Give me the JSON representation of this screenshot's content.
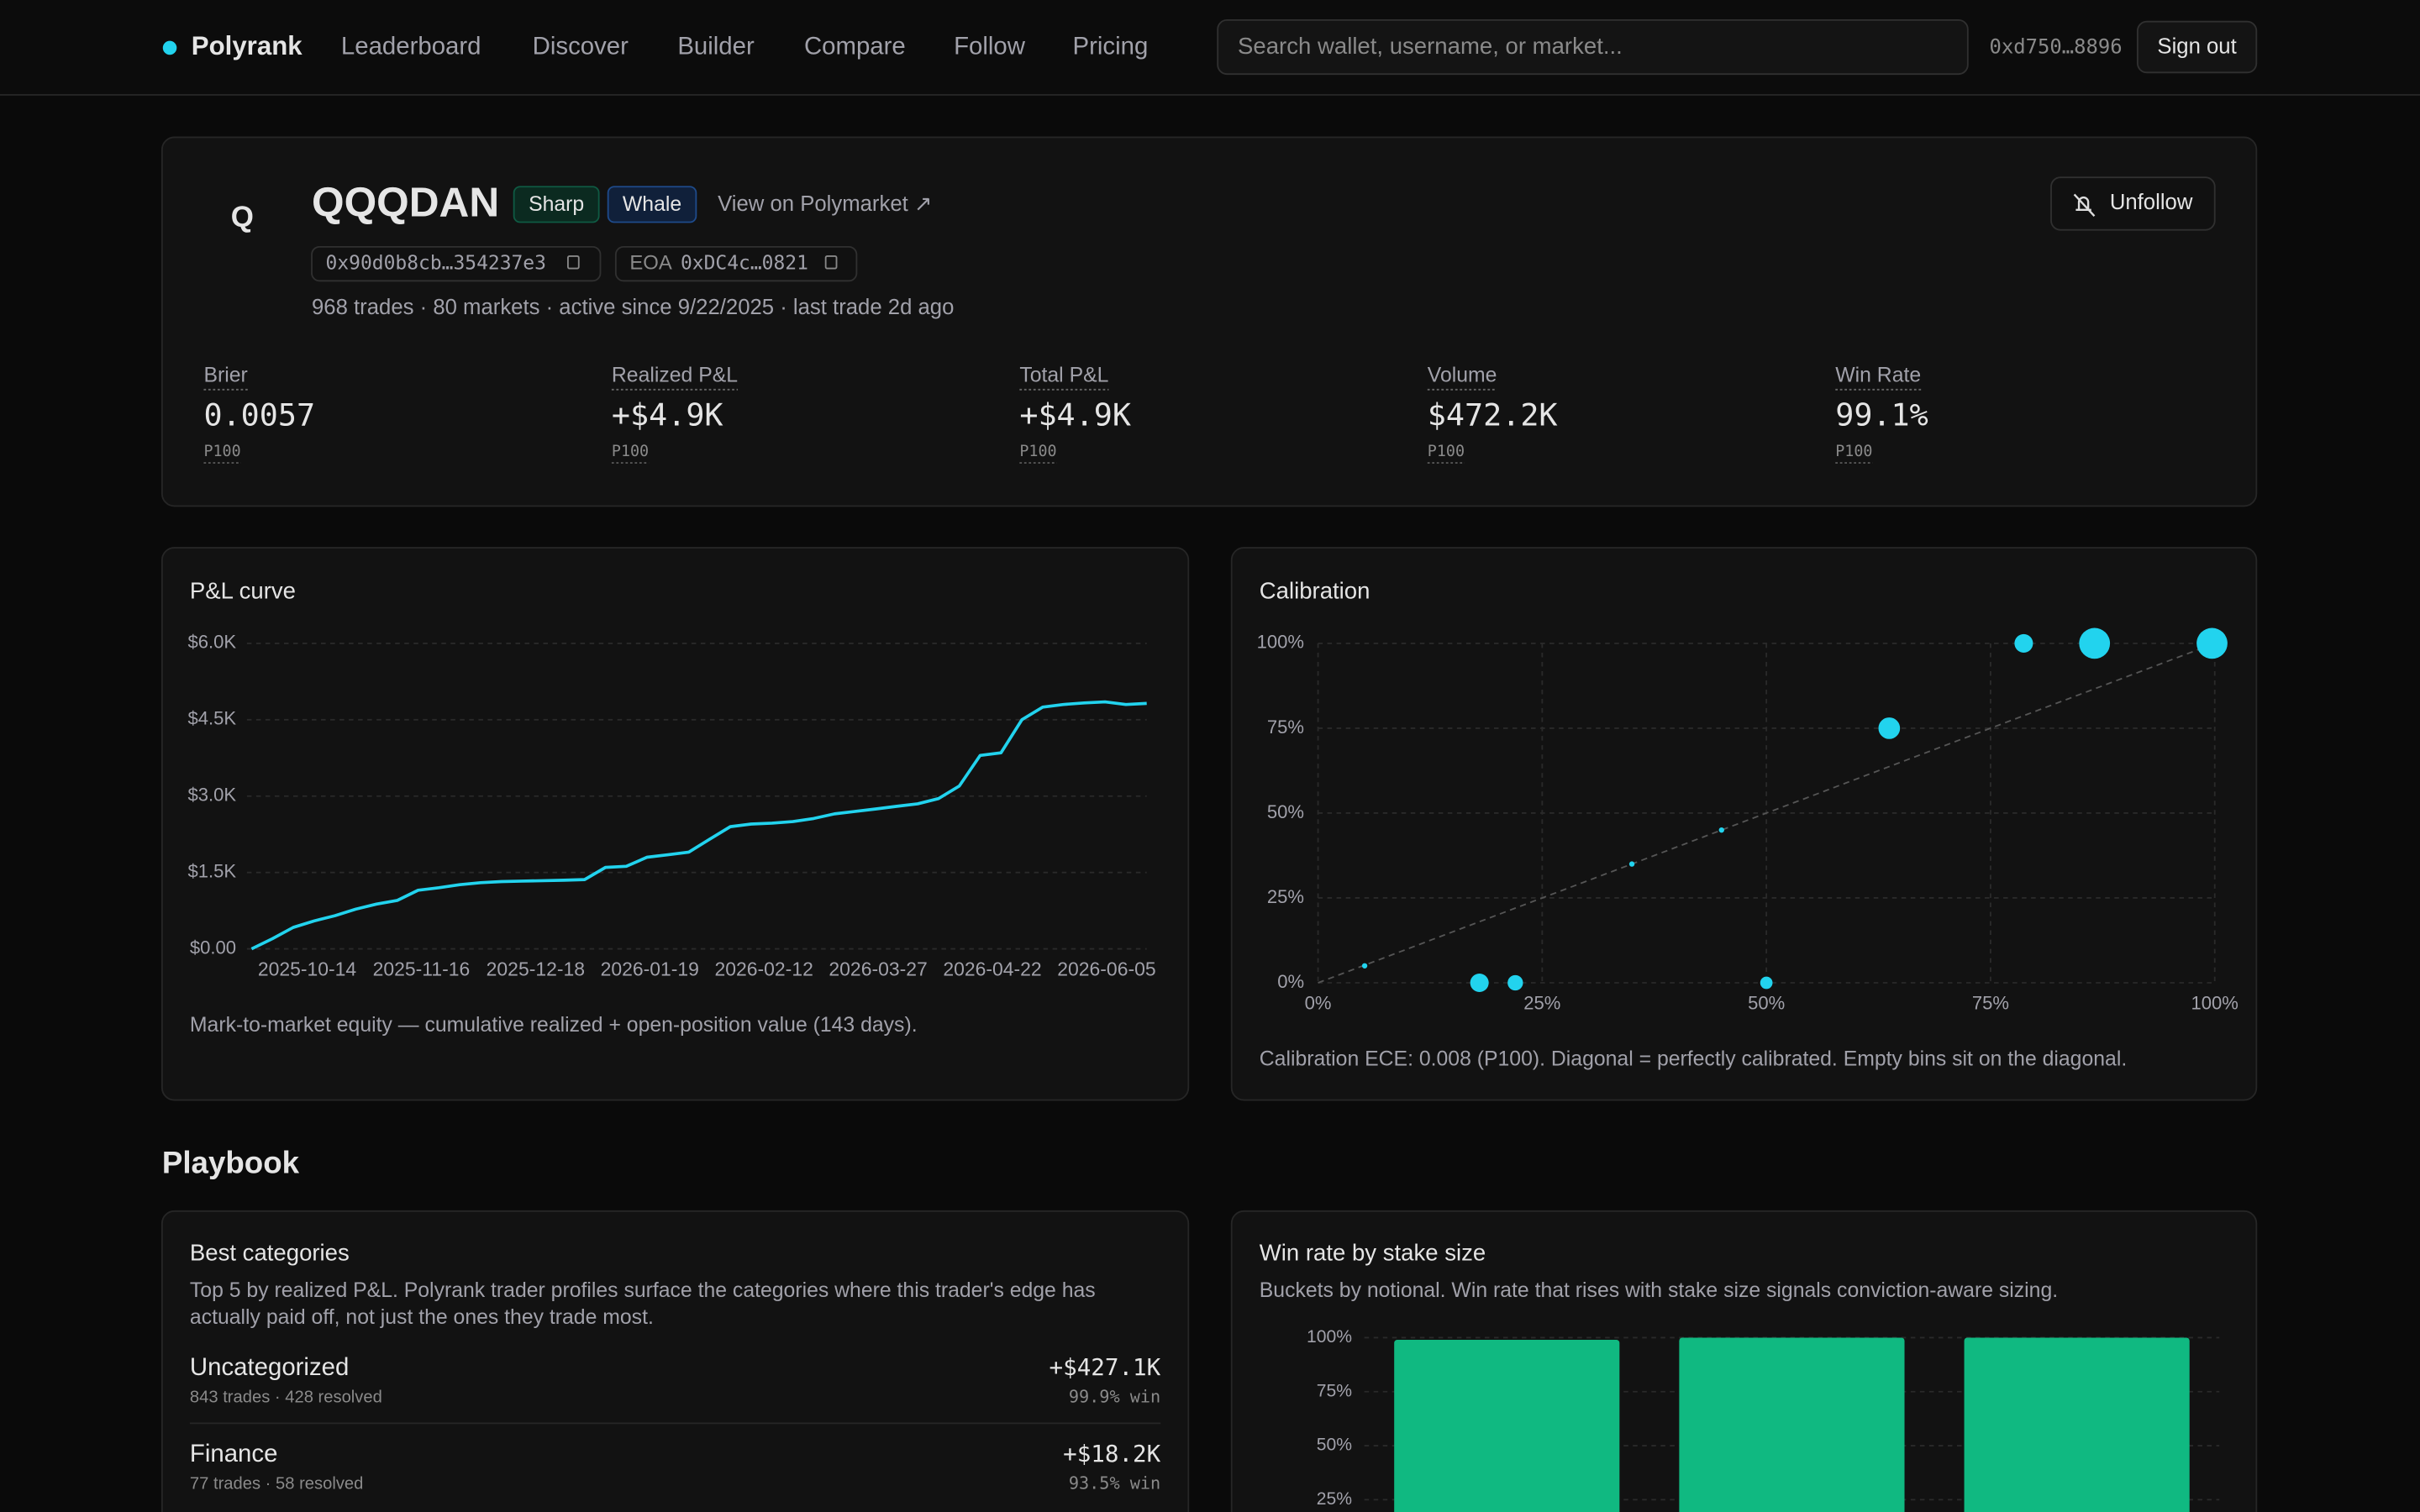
{
  "nav": {
    "brand": "Polyrank",
    "links": [
      "Leaderboard",
      "Discover",
      "Builder",
      "Compare",
      "Follow",
      "Pricing"
    ],
    "search_placeholder": "Search wallet, username, or market...",
    "wallet": "0xd750…8896",
    "sign_out": "Sign out"
  },
  "profile": {
    "avatar": "Q",
    "name": "QQQDAN",
    "badges": [
      "Sharp",
      "Whale"
    ],
    "polymarket_link": "View on Polymarket ↗",
    "address": "0x90d0b8cb…354237e3",
    "eoa_label": "EOA",
    "eoa": "0xDC4c…0821",
    "summary": "968 trades · 80 markets · active since 9/22/2025 · last trade 2d ago",
    "unfollow": "Unfollow",
    "stats": [
      {
        "label": "Brier",
        "value": "0.0057",
        "rank": "P100"
      },
      {
        "label": "Realized P&L",
        "value": "+$4.9K",
        "rank": "P100"
      },
      {
        "label": "Total P&L",
        "value": "+$4.9K",
        "rank": "P100"
      },
      {
        "label": "Volume",
        "value": "$472.2K",
        "rank": "P100"
      },
      {
        "label": "Win Rate",
        "value": "99.1%",
        "rank": "P100"
      }
    ]
  },
  "pnl_chart": {
    "type": "line",
    "title": "P&L curve",
    "color": "#22d3ee",
    "values": [
      0,
      200,
      420,
      550,
      650,
      780,
      880,
      950,
      1150,
      1200,
      1260,
      1300,
      1320,
      1330,
      1340,
      1350,
      1360,
      1600,
      1620,
      1800,
      1850,
      1900,
      2150,
      2400,
      2450,
      2470,
      2500,
      2560,
      2650,
      2700,
      2750,
      2800,
      2850,
      2950,
      3200,
      3800,
      3850,
      4500,
      4750,
      4800,
      4830,
      4850,
      4800,
      4820
    ],
    "ylim": [
      0,
      6000
    ],
    "yticks": [
      {
        "value": 0,
        "label": "$0.00"
      },
      {
        "value": 1500,
        "label": "$1.5K"
      },
      {
        "value": 3000,
        "label": "$3.0K"
      },
      {
        "value": 4500,
        "label": "$4.5K"
      },
      {
        "value": 6000,
        "label": "$6.0K"
      }
    ],
    "x_labels": [
      "2025-10-14",
      "2025-11-16",
      "2025-12-18",
      "2026-01-19",
      "2026-02-12",
      "2026-03-27",
      "2026-04-22",
      "2026-06-05"
    ],
    "grid": true,
    "caption": "Mark-to-market equity — cumulative realized + open-position value (143 days)."
  },
  "calibration_chart": {
    "type": "scatter",
    "title": "Calibration",
    "color": "#22d3ee",
    "x": [
      5.2,
      18,
      22,
      35,
      45,
      50,
      63.7,
      78.7,
      86.6,
      99.7
    ],
    "values": [
      5,
      0,
      0,
      35,
      45,
      0,
      75,
      100,
      100,
      100
    ],
    "sizes": [
      3,
      36,
      25,
      3,
      3,
      16,
      49,
      36,
      100,
      100
    ],
    "xlim": [
      0,
      100
    ],
    "ylim": [
      0,
      100
    ],
    "xticks": [
      {
        "value": 0,
        "label": "0%"
      },
      {
        "value": 25,
        "label": "25%"
      },
      {
        "value": 50,
        "label": "50%"
      },
      {
        "value": 75,
        "label": "75%"
      },
      {
        "value": 100,
        "label": "100%"
      }
    ],
    "yticks": [
      {
        "value": 0,
        "label": "0%"
      },
      {
        "value": 25,
        "label": "25%"
      },
      {
        "value": 50,
        "label": "50%"
      },
      {
        "value": 75,
        "label": "75%"
      },
      {
        "value": 100,
        "label": "100%"
      }
    ],
    "grid": true,
    "diagonal": true,
    "caption": "Calibration ECE: 0.008 (P100). Diagonal = perfectly calibrated. Empty bins sit on the diagonal."
  },
  "playbook": {
    "title": "Playbook",
    "best_categories": {
      "title": "Best categories",
      "description": [
        "Top 5 by realized P&L. Polyrank trader profiles surface the categories where this trader's edge has",
        "actually paid off, not just the ones they trade most."
      ],
      "rows": [
        {
          "name": "Uncategorized",
          "meta": "843 trades · 428 resolved",
          "pnl": "+$427.1K",
          "win": "99.9% win"
        },
        {
          "name": "Finance",
          "meta": "77 trades · 58 resolved",
          "pnl": "+$18.2K",
          "win": "93.5% win"
        }
      ]
    }
  },
  "stake_chart": {
    "type": "bar",
    "title": "Win rate by stake size",
    "subtitle": "Buckets by notional. Win rate that rises with stake size signals conviction-aware sizing.",
    "color": "#10b981",
    "values": [
      99,
      100,
      100
    ],
    "ylim": [
      0,
      100
    ],
    "yticks": [
      {
        "value": 25,
        "label": "25%"
      },
      {
        "value": 50,
        "label": "50%"
      },
      {
        "value": 75,
        "label": "75%"
      },
      {
        "value": 100,
        "label": "100%"
      }
    ],
    "grid": true
  }
}
